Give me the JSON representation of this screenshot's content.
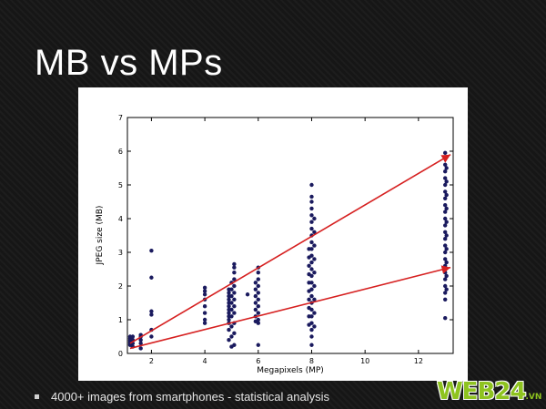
{
  "slide": {
    "title": "MB vs MPs",
    "bullet": "4000+ images from smartphones - statistical analysis",
    "logo_main": "WEB24",
    "logo_suffix": ".VN"
  },
  "chart_data": {
    "type": "scatter",
    "title": "",
    "xlabel": "Megapixels (MP)",
    "ylabel": "JPEG size (MB)",
    "xlim": [
      1.1,
      13.3
    ],
    "ylim": [
      0,
      7
    ],
    "xticks": [
      2,
      4,
      6,
      8,
      10,
      12
    ],
    "yticks": [
      0,
      1,
      2,
      3,
      4,
      5,
      6,
      7
    ],
    "grid": false,
    "point_color": "#1a1a5e",
    "arrow_color": "#d62020",
    "groups": [
      {
        "x": 1.2,
        "y": [
          0.25,
          0.3,
          0.35,
          0.4,
          0.45,
          0.5
        ]
      },
      {
        "x": 1.3,
        "y": [
          0.2,
          0.3,
          0.4,
          0.5
        ]
      },
      {
        "x": 1.6,
        "y": [
          0.15,
          0.3,
          0.4,
          0.5,
          0.55
        ]
      },
      {
        "x": 2.0,
        "y": [
          0.5,
          0.7,
          1.15,
          1.25,
          2.25,
          3.05
        ]
      },
      {
        "x": 4.0,
        "y": [
          0.9,
          1.0,
          1.2,
          1.4,
          1.6,
          1.75,
          1.85,
          1.95
        ]
      },
      {
        "x": 4.9,
        "y": [
          0.4,
          0.7,
          0.9,
          1.0,
          1.1,
          1.2,
          1.3,
          1.4,
          1.5,
          1.6,
          1.7,
          1.8,
          1.9
        ]
      },
      {
        "x": 5.0,
        "y": [
          0.2,
          0.5,
          0.8,
          1.1,
          1.3,
          1.5,
          1.7,
          1.9,
          2.1
        ]
      },
      {
        "x": 5.1,
        "y": [
          0.25,
          0.6,
          0.9,
          1.2,
          1.4,
          1.6,
          1.8,
          2.0,
          2.2,
          2.4,
          2.55,
          2.65
        ]
      },
      {
        "x": 5.6,
        "y": [
          1.75
        ]
      },
      {
        "x": 5.9,
        "y": [
          0.95,
          1.1,
          1.3,
          1.5,
          1.7,
          1.9,
          2.1
        ]
      },
      {
        "x": 6.0,
        "y": [
          0.25,
          0.9,
          1.0,
          1.2,
          1.4,
          1.6,
          1.8,
          2.0,
          2.2,
          2.4,
          2.55
        ]
      },
      {
        "x": 7.9,
        "y": [
          0.85,
          1.1,
          1.35,
          1.6,
          1.85,
          2.1,
          2.35,
          2.6,
          2.85,
          3.1
        ]
      },
      {
        "x": 8.0,
        "y": [
          0.25,
          0.5,
          0.7,
          0.9,
          1.1,
          1.3,
          1.5,
          1.7,
          1.9,
          2.1,
          2.3,
          2.5,
          2.7,
          2.9,
          3.1,
          3.3,
          3.5,
          3.7,
          3.9,
          4.1,
          4.3,
          4.5,
          4.65,
          5.0
        ]
      },
      {
        "x": 8.1,
        "y": [
          0.8,
          1.2,
          1.6,
          2.0,
          2.4,
          2.8,
          3.2,
          3.6,
          4.0
        ]
      },
      {
        "x": 13.0,
        "y": [
          1.05,
          1.6,
          1.8,
          2.0,
          2.2,
          2.4,
          2.6,
          2.8,
          3.0,
          3.2,
          3.4,
          3.6,
          3.8,
          4.0,
          4.2,
          4.4,
          4.6,
          4.8,
          5.0,
          5.2,
          5.4,
          5.6,
          5.8,
          5.95
        ]
      },
      {
        "x": 13.05,
        "y": [
          1.9,
          2.3,
          2.7,
          3.1,
          3.5,
          3.9,
          4.3,
          4.7,
          5.1,
          5.5
        ]
      }
    ],
    "annotations": [
      {
        "type": "arrow",
        "from": [
          1.2,
          0.3
        ],
        "to": [
          13.2,
          5.9
        ]
      },
      {
        "type": "arrow",
        "from": [
          1.2,
          0.15
        ],
        "to": [
          13.2,
          2.55
        ]
      }
    ]
  }
}
